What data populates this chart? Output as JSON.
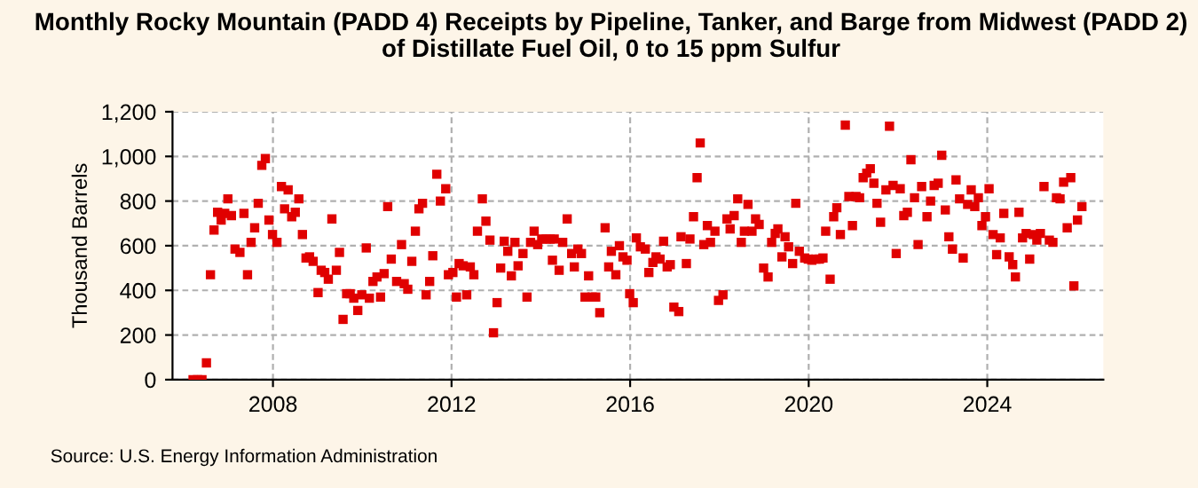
{
  "chart_data": {
    "type": "scatter",
    "title": "Monthly Rocky Mountain (PADD 4) Receipts by Pipeline, Tanker, and Barge from Midwest (PADD 2) of Distillate Fuel Oil, 0 to 15 ppm Sulfur",
    "ylabel": "Thousand Barrels",
    "annotations": [
      "Source: U.S. Energy Information Administration"
    ],
    "xlim": [
      2005.75,
      2026.6
    ],
    "xticks": [
      2008,
      2012,
      2016,
      2020,
      2024
    ],
    "ylim": [
      0,
      1200
    ],
    "yticks": [
      0,
      200,
      400,
      600,
      800,
      {
        "value": 1000,
        "label": "1,000"
      },
      {
        "value": 1200,
        "label": "1,200"
      }
    ],
    "grid": true,
    "marker": "square",
    "legend": false,
    "series": [
      {
        "color": "#e00000",
        "x": [
          2006.21,
          2006.31,
          2006.41,
          2006.51,
          2006.6,
          2006.68,
          2006.76,
          2006.84,
          2006.92,
          2006.99,
          2007.07,
          2007.15,
          2007.26,
          2007.35,
          2007.43,
          2007.51,
          2007.59,
          2007.67,
          2007.75,
          2007.83,
          2007.91,
          2007.99,
          2008.09,
          2008.19,
          2008.26,
          2008.34,
          2008.42,
          2008.5,
          2008.58,
          2008.66,
          2008.74,
          2008.82,
          2008.9,
          2009.01,
          2009.08,
          2009.16,
          2009.24,
          2009.32,
          2009.42,
          2009.49,
          2009.57,
          2009.65,
          2009.73,
          2009.81,
          2009.9,
          2009.99,
          2010.09,
          2010.16,
          2010.24,
          2010.33,
          2010.41,
          2010.49,
          2010.57,
          2010.65,
          2010.77,
          2010.88,
          2010.94,
          2011.02,
          2011.11,
          2011.19,
          2011.27,
          2011.35,
          2011.43,
          2011.51,
          2011.58,
          2011.67,
          2011.75,
          2011.87,
          2011.93,
          2012.03,
          2012.11,
          2012.17,
          2012.26,
          2012.34,
          2012.42,
          2012.5,
          2012.58,
          2012.69,
          2012.77,
          2012.86,
          2012.94,
          2013.02,
          2013.1,
          2013.18,
          2013.26,
          2013.34,
          2013.42,
          2013.49,
          2013.6,
          2013.69,
          2013.77,
          2013.85,
          2013.93,
          2014.02,
          2014.12,
          2014.21,
          2014.26,
          2014.3,
          2014.41,
          2014.49,
          2014.59,
          2014.69,
          2014.75,
          2014.83,
          2014.91,
          2014.99,
          2015.07,
          2015.15,
          2015.23,
          2015.32,
          2015.44,
          2015.52,
          2015.58,
          2015.68,
          2015.76,
          2015.84,
          2015.93,
          2015.99,
          2016.07,
          2016.14,
          2016.23,
          2016.34,
          2016.42,
          2016.51,
          2016.58,
          2016.67,
          2016.75,
          2016.83,
          2016.9,
          2016.98,
          2017.09,
          2017.14,
          2017.26,
          2017.34,
          2017.42,
          2017.5,
          2017.57,
          2017.65,
          2017.73,
          2017.8,
          2017.9,
          2017.98,
          2018.08,
          2018.17,
          2018.24,
          2018.33,
          2018.41,
          2018.49,
          2018.56,
          2018.64,
          2018.73,
          2018.81,
          2018.89,
          2018.99,
          2019.09,
          2019.17,
          2019.25,
          2019.31,
          2019.4,
          2019.47,
          2019.55,
          2019.64,
          2019.71,
          2019.79,
          2019.91,
          2019.99,
          2020.07,
          2020.16,
          2020.24,
          2020.32,
          2020.38,
          2020.48,
          2020.56,
          2020.63,
          2020.71,
          2020.82,
          2020.9,
          2020.98,
          2021.06,
          2021.14,
          2021.22,
          2021.3,
          2021.38,
          2021.46,
          2021.53,
          2021.61,
          2021.73,
          2021.81,
          2021.89,
          2021.96,
          2022.05,
          2022.13,
          2022.21,
          2022.29,
          2022.37,
          2022.45,
          2022.53,
          2022.65,
          2022.73,
          2022.81,
          2022.9,
          2022.98,
          2023.06,
          2023.14,
          2023.22,
          2023.3,
          2023.38,
          2023.46,
          2023.56,
          2023.64,
          2023.72,
          2023.8,
          2023.88,
          2023.96,
          2024.04,
          2024.13,
          2024.21,
          2024.29,
          2024.37,
          2024.49,
          2024.57,
          2024.63,
          2024.71,
          2024.79,
          2024.87,
          2024.95,
          2025.03,
          2025.11,
          2025.19,
          2025.27,
          2025.39,
          2025.47,
          2025.55,
          2025.63,
          2025.71,
          2025.79,
          2025.87,
          2025.94,
          2026.02,
          2026.12
        ],
        "values": [
          0,
          0,
          0,
          75,
          470,
          670,
          750,
          715,
          745,
          810,
          735,
          585,
          570,
          745,
          470,
          615,
          680,
          790,
          960,
          990,
          715,
          650,
          615,
          865,
          765,
          850,
          730,
          750,
          810,
          650,
          545,
          550,
          530,
          390,
          490,
          480,
          450,
          720,
          490,
          570,
          270,
          385,
          385,
          365,
          310,
          380,
          590,
          365,
          440,
          460,
          370,
          475,
          775,
          540,
          440,
          605,
          430,
          405,
          530,
          665,
          765,
          790,
          380,
          440,
          555,
          920,
          800,
          855,
          470,
          480,
          370,
          520,
          510,
          380,
          505,
          470,
          665,
          810,
          710,
          625,
          210,
          345,
          500,
          620,
          575,
          465,
          615,
          510,
          565,
          370,
          615,
          665,
          605,
          630,
          630,
          630,
          535,
          630,
          490,
          615,
          720,
          565,
          505,
          585,
          565,
          370,
          465,
          370,
          370,
          300,
          680,
          505,
          575,
          470,
          600,
          550,
          535,
          385,
          345,
          635,
          595,
          585,
          480,
          525,
          550,
          540,
          620,
          505,
          515,
          325,
          305,
          640,
          520,
          630,
          730,
          905,
          1060,
          605,
          690,
          615,
          665,
          355,
          380,
          720,
          675,
          735,
          810,
          615,
          665,
          785,
          665,
          720,
          695,
          500,
          460,
          615,
          655,
          675,
          550,
          640,
          595,
          520,
          790,
          575,
          545,
          540,
          535,
          540,
          540,
          545,
          665,
          450,
          730,
          770,
          650,
          1140,
          820,
          690,
          820,
          815,
          905,
          925,
          945,
          880,
          790,
          705,
          850,
          1135,
          870,
          565,
          855,
          735,
          750,
          985,
          815,
          605,
          865,
          730,
          800,
          870,
          880,
          1005,
          760,
          640,
          585,
          895,
          810,
          545,
          785,
          850,
          775,
          815,
          690,
          730,
          855,
          650,
          560,
          635,
          745,
          550,
          515,
          460,
          750,
          635,
          655,
          540,
          650,
          625,
          655,
          865,
          625,
          615,
          815,
          810,
          885,
          680,
          905,
          420,
          715,
          775
        ]
      }
    ]
  }
}
